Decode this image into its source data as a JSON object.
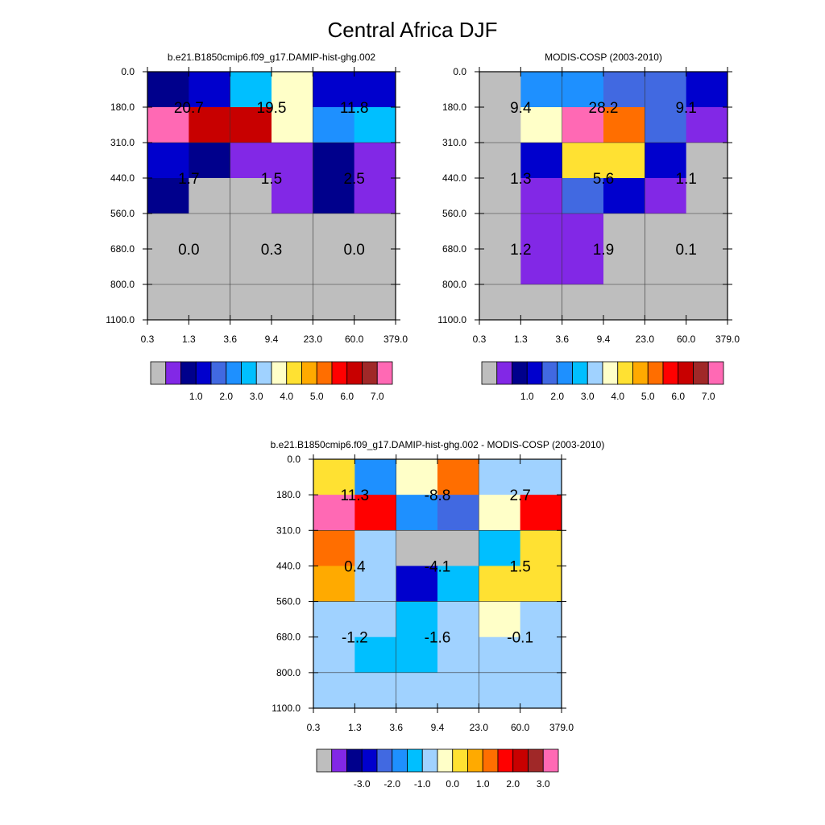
{
  "figure": {
    "title": "Central Africa DJF"
  },
  "colors": {
    "palette_abs": [
      "#bebebe",
      "#8228e6",
      "#00008c",
      "#0000cd",
      "#4169e1",
      "#1e90ff",
      "#00bfff",
      "#a0d2ff",
      "#ffffc8",
      "#ffe132",
      "#ffaa00",
      "#ff6e00",
      "#ff0000",
      "#c80000",
      "#a02828",
      "#ff69b4"
    ],
    "palette_diff": [
      "#bebebe",
      "#8228e6",
      "#00008c",
      "#0000cd",
      "#4169e1",
      "#1e90ff",
      "#00bfff",
      "#a0d2ff",
      "#ffffc8",
      "#ffe132",
      "#ffaa00",
      "#ff6e00",
      "#ff0000",
      "#c80000",
      "#a02828",
      "#ff69b4"
    ]
  },
  "chart_data": [
    {
      "type": "heatmap",
      "title": "b.e21.B1850cmip6.f09_g17.DAMIP-hist-ghg.002",
      "x_tick_labels": [
        "0.3",
        "1.3",
        "3.6",
        "9.4",
        "23.0",
        "60.0",
        "379.0"
      ],
      "y_tick_labels": [
        "0.0",
        "180.0",
        "310.0",
        "440.0",
        "560.0",
        "680.0",
        "800.0",
        "1100.0"
      ],
      "cell_color_index": [
        [
          2,
          3,
          6,
          8,
          3,
          3
        ],
        [
          15,
          13,
          13,
          8,
          5,
          6
        ],
        [
          3,
          2,
          1,
          1,
          2,
          1
        ],
        [
          2,
          0,
          0,
          1,
          2,
          1
        ],
        [
          0,
          0,
          0,
          0,
          0,
          0
        ],
        [
          0,
          0,
          0,
          0,
          0,
          0
        ],
        [
          0,
          0,
          0,
          0,
          0,
          0
        ]
      ],
      "annotations": [
        [
          "20.7",
          "19.5",
          "11.8"
        ],
        [
          "1.7",
          "1.5",
          "2.5"
        ],
        [
          "0.0",
          "0.3",
          "0.0"
        ]
      ],
      "colorbar_labels": [
        "1.0",
        "2.0",
        "3.0",
        "4.0",
        "5.0",
        "6.0",
        "7.0"
      ]
    },
    {
      "type": "heatmap",
      "title": "MODIS-COSP (2003-2010)",
      "x_tick_labels": [
        "0.3",
        "1.3",
        "3.6",
        "9.4",
        "23.0",
        "60.0",
        "379.0"
      ],
      "y_tick_labels": [
        "0.0",
        "180.0",
        "310.0",
        "440.0",
        "560.0",
        "680.0",
        "800.0",
        "1100.0"
      ],
      "cell_color_index": [
        [
          0,
          5,
          5,
          4,
          4,
          3
        ],
        [
          0,
          8,
          15,
          11,
          4,
          1
        ],
        [
          0,
          3,
          9,
          9,
          3,
          0
        ],
        [
          0,
          1,
          4,
          3,
          1,
          0
        ],
        [
          0,
          1,
          1,
          0,
          0,
          0
        ],
        [
          0,
          1,
          1,
          0,
          0,
          0
        ],
        [
          0,
          0,
          0,
          0,
          0,
          0
        ]
      ],
      "annotations": [
        [
          "9.4",
          "28.2",
          "9.1"
        ],
        [
          "1.3",
          "5.6",
          "1.1"
        ],
        [
          "1.2",
          "1.9",
          "0.1"
        ]
      ],
      "colorbar_labels": [
        "1.0",
        "2.0",
        "3.0",
        "4.0",
        "5.0",
        "6.0",
        "7.0"
      ]
    },
    {
      "type": "heatmap",
      "title": "b.e21.B1850cmip6.f09_g17.DAMIP-hist-ghg.002 - MODIS-COSP (2003-2010)",
      "x_tick_labels": [
        "0.3",
        "1.3",
        "3.6",
        "9.4",
        "23.0",
        "60.0",
        "379.0"
      ],
      "y_tick_labels": [
        "0.0",
        "180.0",
        "310.0",
        "440.0",
        "560.0",
        "680.0",
        "800.0",
        "1100.0"
      ],
      "cell_color_index": [
        [
          9,
          5,
          8,
          11,
          7,
          7
        ],
        [
          15,
          12,
          5,
          4,
          8,
          12
        ],
        [
          11,
          7,
          0,
          0,
          6,
          9
        ],
        [
          10,
          7,
          3,
          6,
          9,
          9
        ],
        [
          7,
          7,
          6,
          7,
          8,
          7
        ],
        [
          7,
          6,
          6,
          7,
          7,
          7
        ],
        [
          7,
          7,
          7,
          7,
          7,
          7
        ]
      ],
      "annotations": [
        [
          "11.3",
          "-8.8",
          "2.7"
        ],
        [
          "0.4",
          "-4.1",
          "1.5"
        ],
        [
          "-1.2",
          "-1.6",
          "-0.1"
        ]
      ],
      "colorbar_labels": [
        "-3.0",
        "-2.0",
        "-1.0",
        "0.0",
        "1.0",
        "2.0",
        "3.0"
      ]
    }
  ]
}
